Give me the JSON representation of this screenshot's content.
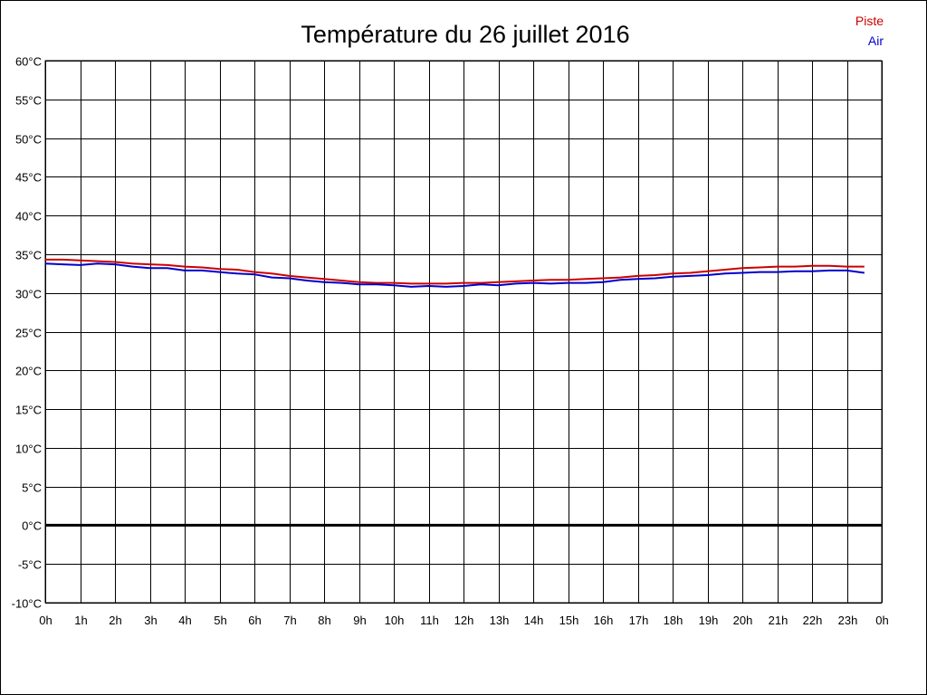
{
  "chart_data": {
    "type": "line",
    "title": "Température du 26 juillet 2016",
    "xlabel": "",
    "ylabel": "",
    "y_unit": "°C",
    "ylim": [
      -10,
      60
    ],
    "y_ticks": [
      "60°C",
      "55°C",
      "50°C",
      "45°C",
      "40°C",
      "35°C",
      "30°C",
      "25°C",
      "20°C",
      "15°C",
      "10°C",
      "5°C",
      "0°C",
      "-5°C",
      "-10°C"
    ],
    "x_ticks": [
      "0h",
      "1h",
      "2h",
      "3h",
      "4h",
      "5h",
      "6h",
      "7h",
      "8h",
      "9h",
      "10h",
      "11h",
      "12h",
      "13h",
      "14h",
      "15h",
      "16h",
      "17h",
      "18h",
      "19h",
      "20h",
      "21h",
      "22h",
      "23h",
      "0h"
    ],
    "xlim": [
      0,
      24
    ],
    "grid": true,
    "zero_line": true,
    "legend_position": "top-right",
    "x": [
      0,
      0.5,
      1,
      1.5,
      2,
      2.5,
      3,
      3.5,
      4,
      4.5,
      5,
      5.5,
      6,
      6.5,
      7,
      7.5,
      8,
      8.5,
      9,
      9.5,
      10,
      10.5,
      11,
      11.5,
      12,
      12.5,
      13,
      13.5,
      14,
      14.5,
      15,
      15.5,
      16,
      16.5,
      17,
      17.5,
      18,
      18.5,
      19,
      19.5,
      20,
      20.5,
      21,
      21.5,
      22,
      22.5,
      23,
      23.5
    ],
    "series": [
      {
        "name": "Piste",
        "color": "#cc0000",
        "values": [
          34.3,
          34.3,
          34.2,
          34.1,
          34.0,
          33.8,
          33.7,
          33.6,
          33.4,
          33.3,
          33.1,
          33.0,
          32.7,
          32.5,
          32.2,
          32.0,
          31.8,
          31.6,
          31.4,
          31.3,
          31.3,
          31.2,
          31.2,
          31.2,
          31.3,
          31.3,
          31.4,
          31.5,
          31.6,
          31.7,
          31.7,
          31.8,
          31.9,
          32.0,
          32.2,
          32.3,
          32.5,
          32.6,
          32.8,
          33.0,
          33.2,
          33.3,
          33.4,
          33.4,
          33.5,
          33.5,
          33.4,
          33.4
        ]
      },
      {
        "name": "Air",
        "color": "#0000cc",
        "values": [
          33.8,
          33.7,
          33.6,
          33.8,
          33.7,
          33.4,
          33.2,
          33.2,
          32.9,
          32.9,
          32.7,
          32.5,
          32.4,
          32.0,
          31.9,
          31.6,
          31.4,
          31.3,
          31.1,
          31.1,
          31.0,
          30.8,
          30.9,
          30.8,
          30.9,
          31.1,
          31.0,
          31.2,
          31.3,
          31.2,
          31.3,
          31.3,
          31.4,
          31.7,
          31.8,
          31.9,
          32.1,
          32.2,
          32.3,
          32.5,
          32.6,
          32.7,
          32.7,
          32.8,
          32.8,
          32.9,
          32.9,
          32.6
        ]
      }
    ]
  }
}
